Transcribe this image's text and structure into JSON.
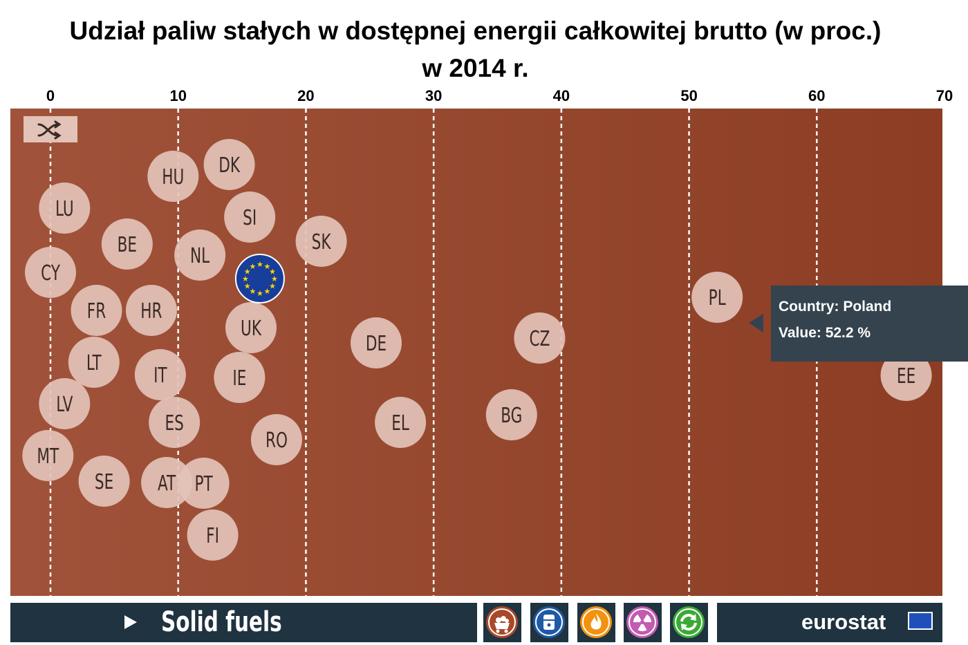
{
  "title": "Udział paliw stałych w dostępnej energii całkowitej brutto (w proc.)",
  "subtitle": "w  2014 r.",
  "colors": {
    "plot_bg_left": "#a0533a",
    "plot_bg_right": "#8c3d24",
    "bubble": "#e3c2b8",
    "bubble_text": "#3a2a26",
    "eu_blue": "#173e9a",
    "eu_star": "#ffd500",
    "bar_bg": "#1f3340",
    "tooltip_bg": "#34434e"
  },
  "chart_data": {
    "type": "scatter",
    "title": "Udział paliw stałych w dostępnej energii całkowitej brutto (w proc.)",
    "subtitle": "w  2014 r.",
    "xlim": [
      0,
      70
    ],
    "x_ticks": [
      "0",
      "10",
      "20",
      "30",
      "40",
      "50",
      "60",
      "70"
    ],
    "grid": "vertical dashed",
    "series": [
      {
        "points": [
          {
            "label": "LU",
            "value": 1.1
          },
          {
            "label": "CY",
            "value": 0.0
          },
          {
            "label": "MT",
            "value": -0.2
          },
          {
            "label": "LV",
            "value": 1.1
          },
          {
            "label": "LT",
            "value": 3.4
          },
          {
            "label": "FR",
            "value": 3.6
          },
          {
            "label": "SE",
            "value": 4.2
          },
          {
            "label": "BE",
            "value": 6.0
          },
          {
            "label": "HR",
            "value": 7.9
          },
          {
            "label": "IT",
            "value": 8.6
          },
          {
            "label": "HU",
            "value": 9.6
          },
          {
            "label": "AT",
            "value": 9.1
          },
          {
            "label": "ES",
            "value": 9.7
          },
          {
            "label": "NL",
            "value": 11.7
          },
          {
            "label": "PT",
            "value": 12.0
          },
          {
            "label": "FI",
            "value": 12.7
          },
          {
            "label": "DK",
            "value": 14.0
          },
          {
            "label": "IE",
            "value": 14.8
          },
          {
            "label": "SI",
            "value": 15.6
          },
          {
            "label": "UK",
            "value": 15.7
          },
          {
            "label": "RO",
            "value": 17.7
          },
          {
            "label": "SK",
            "value": 21.2
          },
          {
            "label": "DE",
            "value": 25.5
          },
          {
            "label": "EL",
            "value": 27.4
          },
          {
            "label": "BG",
            "value": 36.1
          },
          {
            "label": "CZ",
            "value": 38.3
          },
          {
            "label": "PL",
            "value": 52.2
          },
          {
            "label": "EE",
            "value": 67.0
          },
          {
            "label": "EU",
            "value": 16.4,
            "is_eu": true
          }
        ]
      }
    ],
    "tooltip": {
      "country_line": "Country: Poland",
      "value_line": "Value: 52.2 %"
    }
  },
  "toolbar": {
    "fuel_label": "Solid fuels",
    "icons": [
      {
        "name": "solid-fuels-icon",
        "color": "#a8492a"
      },
      {
        "name": "oil-barrel-icon",
        "color": "#1f5aa5"
      },
      {
        "name": "gas-flame-icon",
        "color": "#f2920f"
      },
      {
        "name": "nuclear-icon",
        "color": "#c35bb0"
      },
      {
        "name": "renewables-icon",
        "color": "#3aaa35"
      }
    ],
    "brand": "eurostat"
  }
}
